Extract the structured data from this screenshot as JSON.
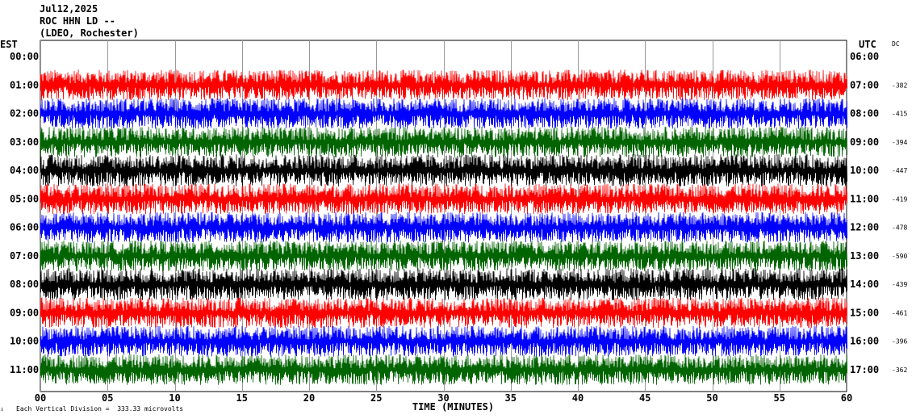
{
  "header": {
    "line1": "Jul12,2025",
    "line2": "ROC HHN LD --",
    "line3": "(LDEO, Rochester)"
  },
  "labels": {
    "left_tz": "EST",
    "right_tz": "UTC",
    "dc": "DC",
    "footer_note": "Each Vertical Division =  333.33 microvolts"
  },
  "chart_data": {
    "type": "line",
    "title": "",
    "xlabel": "TIME (MINUTES)",
    "ylabel": "",
    "xlim": [
      0,
      60
    ],
    "x_ticks": [
      "00",
      "05",
      "10",
      "15",
      "20",
      "25",
      "30",
      "35",
      "40",
      "45",
      "50",
      "55",
      "60"
    ],
    "grid": true,
    "trace_colors": [
      "#ff0000",
      "#0000ff",
      "#006400",
      "#000000"
    ],
    "rows": [
      {
        "est": "00:00",
        "utc": "06:00",
        "dc": ""
      },
      {
        "est": "01:00",
        "utc": "07:00",
        "dc": "-382"
      },
      {
        "est": "02:00",
        "utc": "08:00",
        "dc": "-415"
      },
      {
        "est": "03:00",
        "utc": "09:00",
        "dc": "-394"
      },
      {
        "est": "04:00",
        "utc": "10:00",
        "dc": "-447"
      },
      {
        "est": "05:00",
        "utc": "11:00",
        "dc": "-419"
      },
      {
        "est": "06:00",
        "utc": "12:00",
        "dc": "-478"
      },
      {
        "est": "07:00",
        "utc": "13:00",
        "dc": "-590"
      },
      {
        "est": "08:00",
        "utc": "14:00",
        "dc": "-439"
      },
      {
        "est": "09:00",
        "utc": "15:00",
        "dc": "-461"
      },
      {
        "est": "10:00",
        "utc": "16:00",
        "dc": "-396"
      },
      {
        "est": "11:00",
        "utc": "17:00",
        "dc": "-362"
      }
    ]
  }
}
